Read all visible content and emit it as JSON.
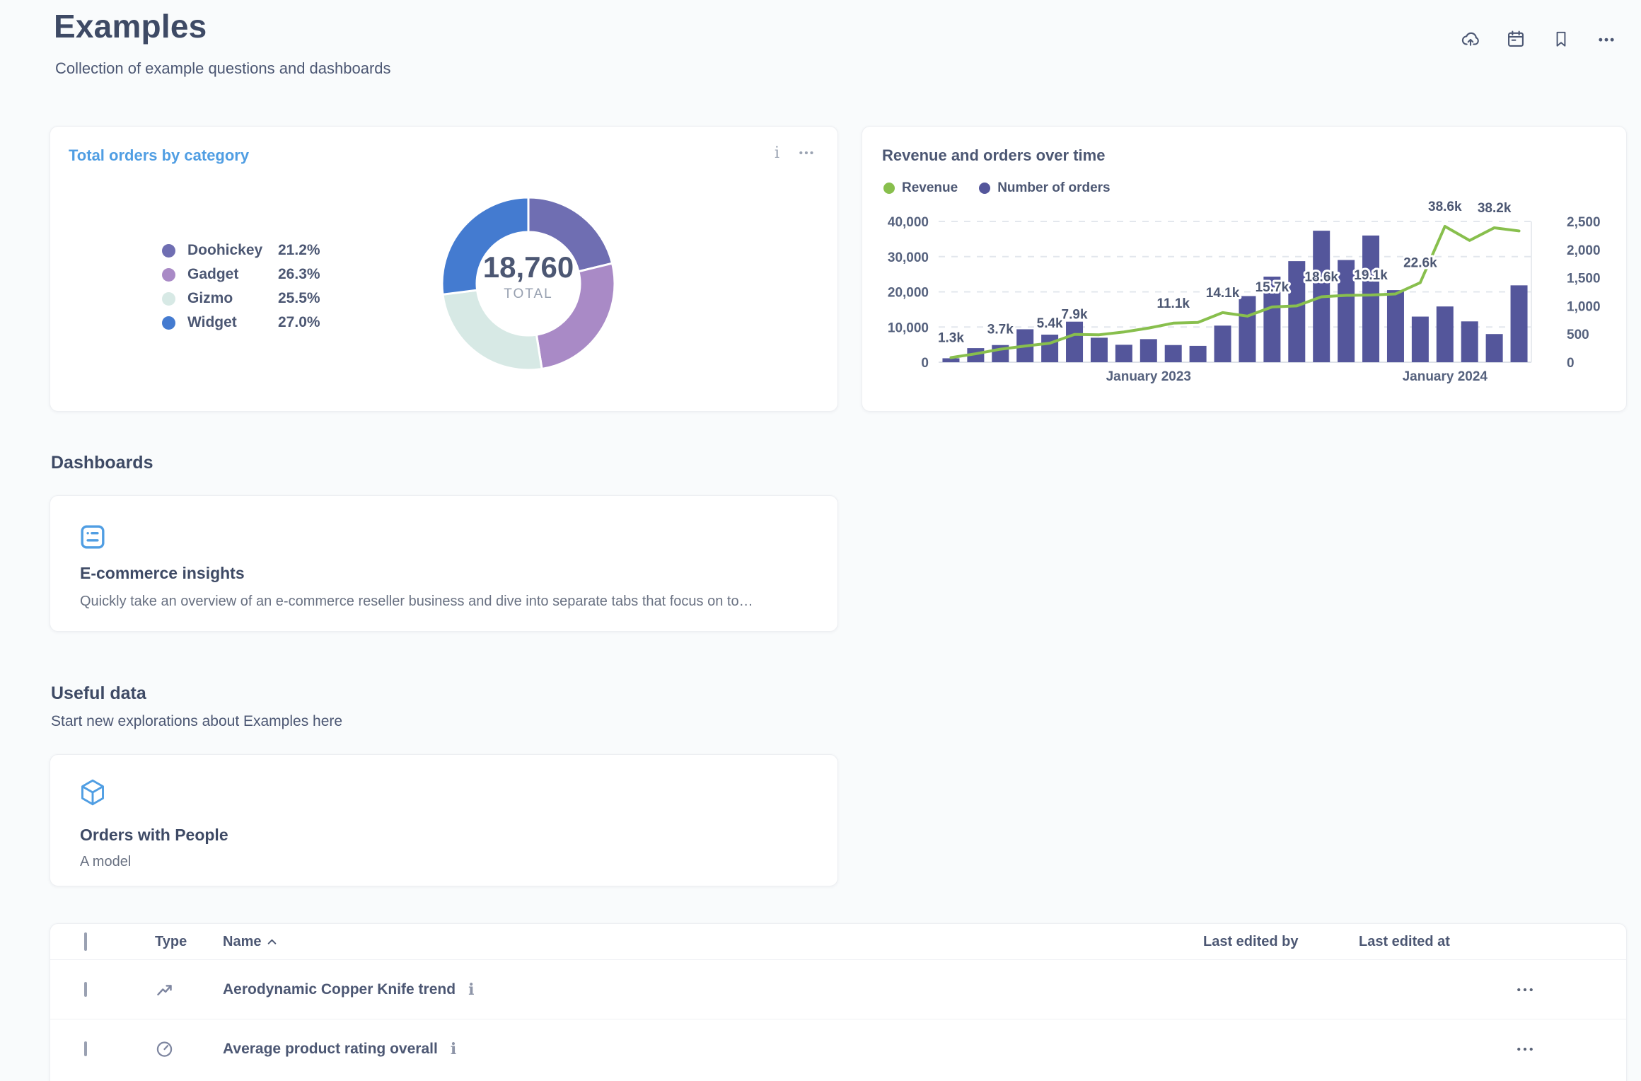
{
  "page": {
    "title": "Examples",
    "subtitle": "Collection of example questions and dashboards"
  },
  "header": {
    "icons": [
      "cloud-upload",
      "calendar",
      "bookmark",
      "ellipsis"
    ]
  },
  "colors": {
    "brand_blue": "#509EE3",
    "text_dark": "#3E4A65",
    "text_primary": "#4C5773",
    "text_muted": "#697182",
    "axis_label": "#56627E",
    "grid_line": "#E3E7ED",
    "revenue_green": "#88BF4D",
    "orders_purple": "#54569B"
  },
  "cards": {
    "pie_card": {
      "title": "Total orders by category"
    },
    "combo_card": {
      "title": "Revenue and orders over time"
    }
  },
  "chart_data": [
    {
      "type": "pie",
      "title": "Total orders by category",
      "total_value": "18,760",
      "total_label": "TOTAL",
      "legend_position": "left",
      "slices": [
        {
          "label": "Doohickey",
          "pct": 21.2,
          "pct_text": "21.2%",
          "color": "#6F6EB2"
        },
        {
          "label": "Gadget",
          "pct": 26.3,
          "pct_text": "26.3%",
          "color": "#A98AC6"
        },
        {
          "label": "Gizmo",
          "pct": 25.5,
          "pct_text": "25.5%",
          "color": "#D7E9E5"
        },
        {
          "label": "Widget",
          "pct": 27.0,
          "pct_text": "27.0%",
          "color": "#447BD0"
        }
      ]
    },
    {
      "type": "combo",
      "title": "Revenue and orders over time",
      "x": {
        "months": 24,
        "axis_labels": [
          {
            "index": 8,
            "text": "January 2023"
          },
          {
            "index": 20,
            "text": "January 2024"
          }
        ]
      },
      "left_axis": {
        "max": 40000,
        "ticks": [
          {
            "v": 0,
            "t": "0"
          },
          {
            "v": 10000,
            "t": "10,000"
          },
          {
            "v": 20000,
            "t": "20,000"
          },
          {
            "v": 30000,
            "t": "30,000"
          },
          {
            "v": 40000,
            "t": "40,000"
          }
        ]
      },
      "right_axis": {
        "max": 2500,
        "ticks": [
          {
            "v": 0,
            "t": "0"
          },
          {
            "v": 500,
            "t": "500"
          },
          {
            "v": 1000,
            "t": "1,000"
          },
          {
            "v": 1500,
            "t": "1,500"
          },
          {
            "v": 2000,
            "t": "2,000"
          },
          {
            "v": 2500,
            "t": "2,500"
          }
        ]
      },
      "series": [
        {
          "name": "Revenue",
          "type": "line",
          "axis": "left",
          "color": "#88BF4D",
          "values": [
            1300,
            2400,
            3700,
            4600,
            5400,
            7900,
            7800,
            8600,
            9700,
            11100,
            11300,
            14100,
            13100,
            15700,
            16000,
            18600,
            19000,
            19100,
            19400,
            22600,
            38600,
            34600,
            38200,
            37300
          ]
        },
        {
          "name": "Number of orders",
          "type": "bar",
          "axis": "right",
          "color": "#54569B",
          "values": [
            70,
            250,
            305,
            585,
            490,
            720,
            435,
            310,
            410,
            305,
            290,
            650,
            1175,
            1520,
            1795,
            2335,
            1815,
            2250,
            1280,
            810,
            990,
            725,
            500,
            1365
          ]
        }
      ],
      "point_labels": [
        {
          "i": 0,
          "t": "1.3k"
        },
        {
          "i": 2,
          "t": "3.7k"
        },
        {
          "i": 4,
          "t": "5.4k"
        },
        {
          "i": 5,
          "t": "7.9k"
        },
        {
          "i": 9,
          "t": "11.1k"
        },
        {
          "i": 11,
          "t": "14.1k"
        },
        {
          "i": 13,
          "t": "15.7k"
        },
        {
          "i": 15,
          "t": "18.6k"
        },
        {
          "i": 17,
          "t": "19.1k"
        },
        {
          "i": 19,
          "t": "22.6k"
        },
        {
          "i": 20,
          "t": "38.6k"
        },
        {
          "i": 22,
          "t": "38.2k"
        }
      ]
    }
  ],
  "sections": {
    "dashboards": {
      "heading": "Dashboards",
      "card": {
        "title": "E-commerce insights",
        "description": "Quickly take an overview of an e-commerce reseller business and dive into separate tabs that focus on to…"
      }
    },
    "useful_data": {
      "heading": "Useful data",
      "subheading": "Start new explorations about Examples here",
      "card": {
        "title": "Orders with People",
        "description": "A model"
      }
    }
  },
  "table": {
    "headers": {
      "type": "Type",
      "name": "Name",
      "last_edited_by": "Last edited by",
      "last_edited_at": "Last edited at"
    },
    "sort": {
      "column": "Name",
      "direction": "asc"
    },
    "rows": [
      {
        "type_icon": "trend-icon",
        "name": "Aerodynamic Copper Knife trend"
      },
      {
        "type_icon": "gauge-icon",
        "name": "Average product rating overall"
      }
    ]
  }
}
